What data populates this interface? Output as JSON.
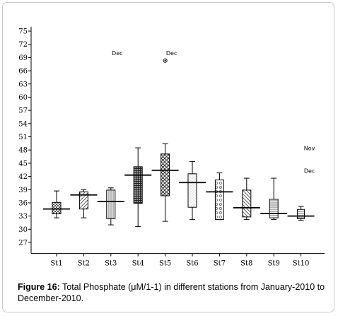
{
  "chart_data": {
    "type": "boxplot",
    "categories": [
      "St1",
      "St2",
      "St3",
      "St4",
      "St5",
      "St6",
      "St7",
      "St8",
      "St9",
      "St10"
    ],
    "yticks": [
      "27",
      "30",
      "33",
      "36",
      "39",
      "42",
      "45",
      "48",
      "51",
      "54",
      "57",
      "60",
      "63",
      "66",
      "69",
      "72",
      "75"
    ],
    "ylim": [
      24.5,
      76
    ],
    "grid": false,
    "boxes": [
      {
        "min": 32.6,
        "q1": 33.5,
        "median": 34.6,
        "q3": 36.1,
        "max": 38.7,
        "pattern": "checker"
      },
      {
        "min": 32.6,
        "q1": 34.6,
        "median": 37.8,
        "q3": 38.5,
        "max": 39.0,
        "pattern": "diag-left"
      },
      {
        "min": 31.0,
        "q1": 32.4,
        "median": 36.3,
        "q3": 38.9,
        "max": 39.4,
        "pattern": "vertical"
      },
      {
        "min": 30.6,
        "q1": 35.9,
        "median": 42.3,
        "q3": 44.2,
        "max": 48.5,
        "pattern": "grid"
      },
      {
        "min": 31.8,
        "q1": 37.6,
        "median": 43.4,
        "q3": 47.1,
        "max": 49.4,
        "pattern": "cross"
      },
      {
        "min": 32.2,
        "q1": 35.0,
        "median": 40.6,
        "q3": 42.6,
        "max": 45.4,
        "pattern": "dots"
      },
      {
        "min": 32.2,
        "q1": 32.2,
        "median": 38.5,
        "q3": 41.2,
        "max": 42.8,
        "pattern": "circles"
      },
      {
        "min": 32.2,
        "q1": 32.8,
        "median": 34.9,
        "q3": 38.9,
        "max": 41.6,
        "pattern": "diag-right"
      },
      {
        "min": 32.2,
        "q1": 32.6,
        "median": 33.6,
        "q3": 36.8,
        "max": 41.6,
        "pattern": "horizontal"
      },
      {
        "min": 32.0,
        "q1": 32.4,
        "median": 33.0,
        "q3": 34.5,
        "max": 35.2,
        "pattern": "horizontal"
      }
    ],
    "annotations": [
      {
        "text": "Dec",
        "x": "St3",
        "y": 70.0
      },
      {
        "text": "Dec",
        "x": "St5",
        "y": 70.0
      },
      {
        "text": "Nov",
        "x": "St10",
        "y": 48.4
      },
      {
        "text": "Dec",
        "x": "St10",
        "y": 43.3
      }
    ],
    "outliers": [
      {
        "x": "St5",
        "y": 68.3
      }
    ]
  },
  "caption": {
    "label": "Figure 16:",
    "text": " Total Phosphate (μM/1-1) in different stations from January-2010 to December-2010."
  }
}
